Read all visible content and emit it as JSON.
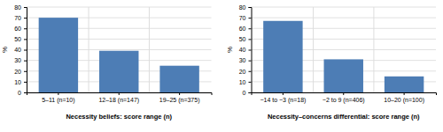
{
  "chart_data": [
    {
      "type": "bar",
      "categories": [
        "5–11 (n=10)",
        "12–18 (n=147)",
        "19–25 (n=375)"
      ],
      "values": [
        70,
        39,
        25
      ],
      "xlabel": "Necessity beliefs: score range (n)",
      "ylabel": "%",
      "ylim": [
        0,
        80
      ],
      "yticks": [
        0,
        10,
        20,
        30,
        40,
        50,
        60,
        70,
        80
      ],
      "grid": true,
      "color": "#4d7db5"
    },
    {
      "type": "bar",
      "categories": [
        "−14 to −3 (n=18)",
        "−2 to 9 (n=406)",
        "10–20 (n=100)"
      ],
      "values": [
        67,
        31,
        15
      ],
      "xlabel": "Necessity–concerns differential: score range (n)",
      "ylabel": "%",
      "ylim": [
        0,
        80
      ],
      "yticks": [
        0,
        10,
        20,
        30,
        40,
        50,
        60,
        70,
        80
      ],
      "grid": true,
      "color": "#4d7db5"
    }
  ]
}
